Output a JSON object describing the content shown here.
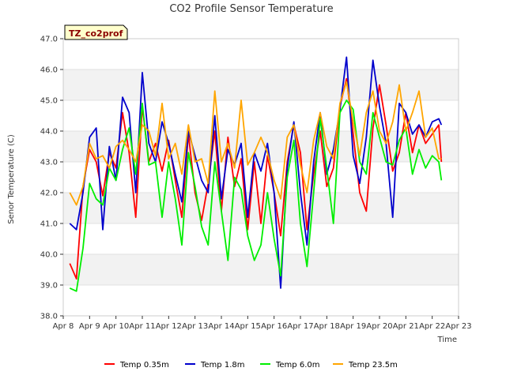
{
  "chart_data": {
    "type": "line",
    "title": "CO2 Profile Sensor Temperature",
    "xlabel": "Time",
    "ylabel": "Senor Temperature (C)",
    "ylim": [
      38.0,
      47.0
    ],
    "xlim": [
      0,
      15
    ],
    "grid": "horizontal bands",
    "legend_position": "bottom",
    "badge": "TZ_co2prof",
    "yticks": [
      "38.0",
      "39.0",
      "40.0",
      "41.0",
      "42.0",
      "43.0",
      "44.0",
      "45.0",
      "46.0",
      "47.0"
    ],
    "xticks": [
      "Apr 8",
      "Apr 9",
      "Apr 10",
      "Apr 11",
      "Apr 12",
      "Apr 13",
      "Apr 14",
      "Apr 15",
      "Apr 16",
      "Apr 17",
      "Apr 18",
      "Apr 19",
      "Apr 20",
      "Apr 21",
      "Apr 22",
      "Apr 23"
    ],
    "series": [
      {
        "name": "Temp 0.35m",
        "color": "#ff0000",
        "x": [
          0.25,
          0.5,
          0.75,
          1.0,
          1.25,
          1.5,
          1.75,
          2.0,
          2.25,
          2.5,
          2.75,
          3.0,
          3.25,
          3.5,
          3.75,
          4.0,
          4.25,
          4.5,
          4.75,
          5.0,
          5.25,
          5.5,
          5.75,
          6.0,
          6.25,
          6.5,
          6.75,
          7.0,
          7.25,
          7.5,
          7.75,
          8.0,
          8.25,
          8.5,
          8.75,
          9.0,
          9.25,
          9.5,
          9.75,
          10.0,
          10.25,
          10.5,
          10.75,
          11.0,
          11.25,
          11.5,
          11.75,
          12.0,
          12.25,
          12.5,
          12.75,
          13.0,
          13.25,
          13.5,
          13.75,
          14.0,
          14.25,
          14.35
        ],
        "y": [
          39.7,
          39.2,
          42.2,
          43.4,
          43.0,
          41.9,
          43.3,
          42.8,
          44.6,
          43.3,
          41.2,
          44.8,
          43.0,
          43.6,
          42.7,
          43.7,
          42.4,
          41.2,
          43.9,
          42.0,
          41.1,
          42.3,
          44.0,
          41.4,
          43.8,
          42.2,
          43.1,
          40.8,
          43.0,
          41.0,
          43.2,
          42.0,
          40.6,
          43.0,
          44.2,
          43.3,
          40.8,
          42.6,
          44.0,
          42.2,
          42.8,
          44.8,
          45.7,
          43.9,
          42.0,
          41.4,
          44.1,
          45.5,
          44.2,
          42.7,
          43.3,
          44.6,
          43.3,
          44.2,
          43.6,
          43.9,
          44.2,
          43.0
        ]
      },
      {
        "name": "Temp 1.8m",
        "color": "#0000cc",
        "x": [
          0.25,
          0.5,
          0.75,
          1.0,
          1.25,
          1.5,
          1.75,
          2.0,
          2.25,
          2.5,
          2.75,
          3.0,
          3.25,
          3.5,
          3.75,
          4.0,
          4.25,
          4.5,
          4.75,
          5.0,
          5.25,
          5.5,
          5.75,
          6.0,
          6.25,
          6.5,
          6.75,
          7.0,
          7.25,
          7.5,
          7.75,
          8.0,
          8.25,
          8.5,
          8.75,
          9.0,
          9.25,
          9.5,
          9.75,
          10.0,
          10.25,
          10.5,
          10.75,
          11.0,
          11.25,
          11.5,
          11.75,
          12.0,
          12.25,
          12.5,
          12.75,
          13.0,
          13.25,
          13.5,
          13.75,
          14.0,
          14.25,
          14.35
        ],
        "y": [
          41.0,
          40.8,
          42.0,
          43.8,
          44.1,
          40.8,
          43.5,
          42.4,
          45.1,
          44.6,
          42.0,
          45.9,
          43.6,
          43.0,
          44.3,
          43.6,
          42.6,
          41.7,
          44.0,
          43.2,
          42.4,
          42.0,
          44.5,
          41.8,
          43.4,
          42.9,
          43.6,
          41.2,
          43.3,
          42.7,
          43.6,
          42.0,
          38.9,
          42.8,
          44.3,
          42.0,
          40.3,
          43.0,
          44.6,
          42.6,
          43.4,
          44.7,
          46.4,
          43.2,
          42.3,
          43.8,
          46.3,
          44.8,
          43.6,
          41.2,
          44.9,
          44.6,
          43.9,
          44.2,
          43.8,
          44.3,
          44.4,
          44.2
        ]
      },
      {
        "name": "Temp 6.0m",
        "color": "#00ee00",
        "x": [
          0.25,
          0.5,
          0.75,
          1.0,
          1.25,
          1.5,
          1.75,
          2.0,
          2.25,
          2.5,
          2.75,
          3.0,
          3.25,
          3.5,
          3.75,
          4.0,
          4.25,
          4.5,
          4.75,
          5.0,
          5.25,
          5.5,
          5.75,
          6.0,
          6.25,
          6.5,
          6.75,
          7.0,
          7.25,
          7.5,
          7.75,
          8.0,
          8.25,
          8.5,
          8.75,
          9.0,
          9.25,
          9.5,
          9.75,
          10.0,
          10.25,
          10.5,
          10.75,
          11.0,
          11.25,
          11.5,
          11.75,
          12.0,
          12.25,
          12.5,
          12.75,
          13.0,
          13.25,
          13.5,
          13.75,
          14.0,
          14.25,
          14.35
        ],
        "y": [
          38.9,
          38.8,
          40.2,
          42.3,
          41.8,
          41.6,
          42.8,
          42.4,
          43.4,
          44.1,
          42.6,
          44.9,
          42.9,
          43.0,
          41.2,
          43.0,
          41.8,
          40.3,
          43.3,
          42.2,
          40.9,
          40.3,
          43.0,
          41.4,
          39.8,
          42.5,
          42.1,
          40.6,
          39.8,
          40.3,
          42.0,
          40.5,
          39.3,
          42.5,
          43.7,
          41.0,
          39.6,
          42.0,
          44.4,
          42.8,
          41.0,
          44.6,
          45.0,
          44.7,
          43.0,
          42.6,
          44.6,
          43.8,
          43.0,
          42.9,
          43.7,
          44.1,
          42.6,
          43.4,
          42.8,
          43.2,
          43.0,
          42.4
        ]
      },
      {
        "name": "Temp 23.5m",
        "color": "#ffa500",
        "x": [
          0.25,
          0.5,
          0.75,
          1.0,
          1.25,
          1.5,
          1.75,
          2.0,
          2.25,
          2.5,
          2.75,
          3.0,
          3.25,
          3.5,
          3.75,
          4.0,
          4.25,
          4.5,
          4.75,
          5.0,
          5.25,
          5.5,
          5.75,
          6.0,
          6.25,
          6.5,
          6.75,
          7.0,
          7.25,
          7.5,
          7.75,
          8.0,
          8.25,
          8.5,
          8.75,
          9.0,
          9.25,
          9.5,
          9.75,
          10.0,
          10.25,
          10.5,
          10.75,
          11.0,
          11.25,
          11.5,
          11.75,
          12.0,
          12.25,
          12.5,
          12.75,
          13.0,
          13.25,
          13.5,
          13.75,
          14.0,
          14.25,
          14.35
        ],
        "y": [
          42.0,
          41.6,
          42.2,
          43.6,
          43.1,
          43.2,
          42.8,
          43.5,
          43.7,
          43.4,
          43.0,
          44.2,
          44.0,
          43.2,
          44.9,
          43.1,
          43.6,
          42.6,
          44.2,
          43.0,
          43.1,
          42.3,
          45.3,
          43.0,
          43.6,
          42.8,
          45.0,
          42.9,
          43.3,
          43.8,
          43.3,
          42.4,
          41.8,
          43.8,
          44.2,
          42.9,
          42.0,
          43.7,
          44.6,
          43.5,
          43.1,
          44.9,
          45.6,
          44.3,
          43.2,
          44.6,
          45.3,
          44.0,
          43.6,
          44.3,
          45.5,
          44.0,
          44.6,
          45.3,
          43.8,
          44.1,
          43.1,
          43.1
        ]
      }
    ]
  }
}
